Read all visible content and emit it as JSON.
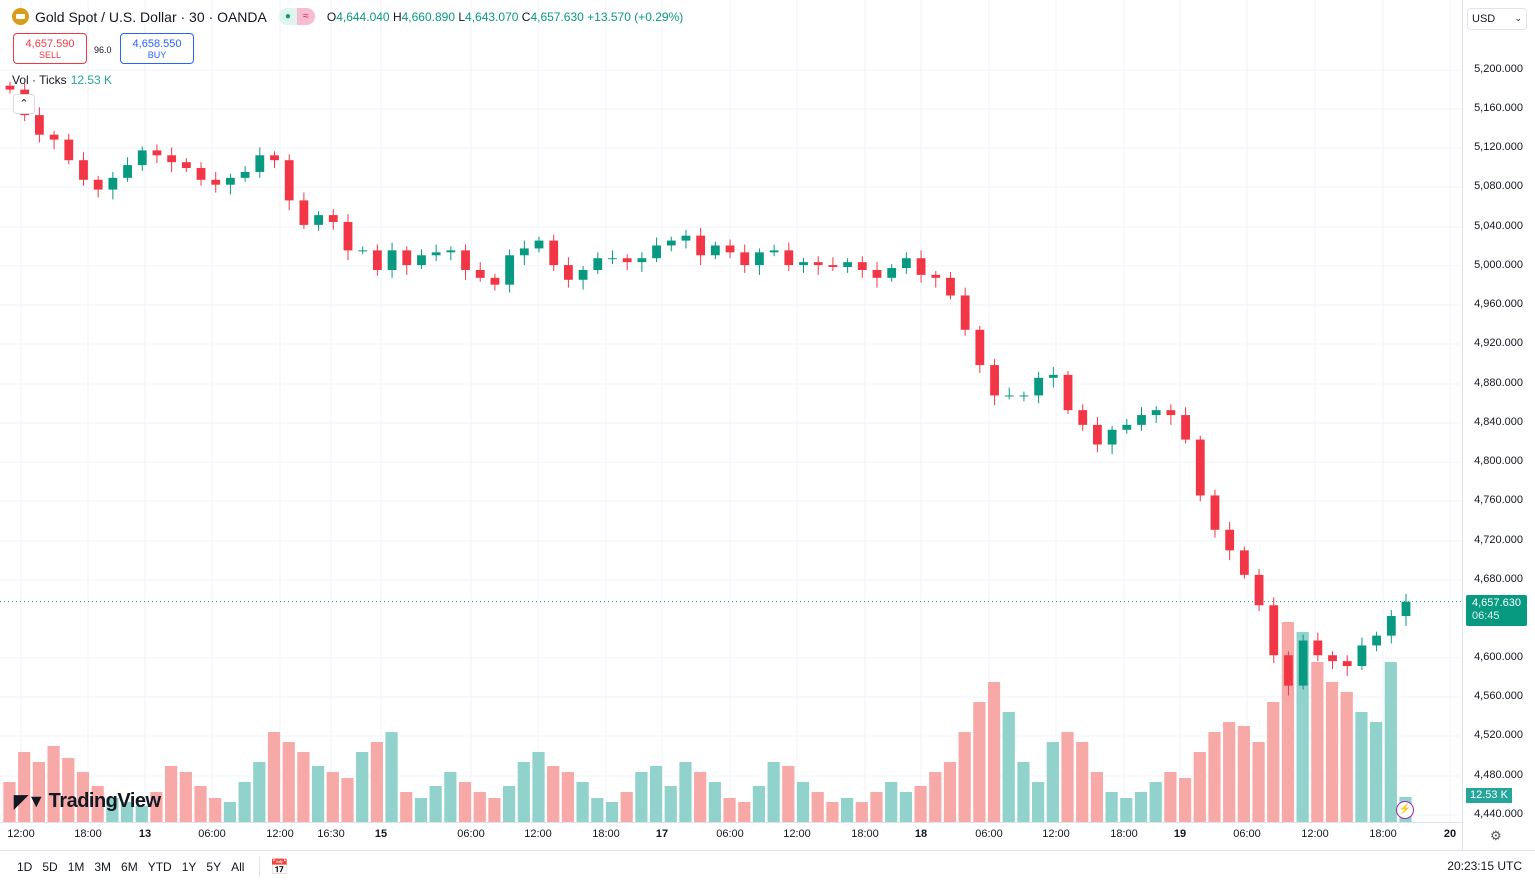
{
  "header": {
    "symbol": "Gold Spot / U.S. Dollar · 30 · OANDA",
    "open_label": "O",
    "open": "4,644.040",
    "high_label": "H",
    "high": "4,660.890",
    "low_label": "L",
    "low": "4,643.070",
    "close_label": "C",
    "close": "4,657.630",
    "change": "+13.570 (+0.29%)"
  },
  "trade": {
    "sell_price": "4,657.590",
    "sell_label": "SELL",
    "spread": "96.0",
    "buy_price": "4,658.550",
    "buy_label": "BUY"
  },
  "volume_legend": {
    "label": "Vol · Ticks",
    "value": "12.53 K"
  },
  "currency": "USD",
  "price_axis": [
    "5,200.000",
    "5,160.000",
    "5,120.000",
    "5,080.000",
    "5,040.000",
    "5,000.000",
    "4,960.000",
    "4,920.000",
    "4,880.000",
    "4,840.000",
    "4,800.000",
    "4,760.000",
    "4,720.000",
    "4,680.000",
    "4,600.000",
    "4,560.000",
    "4,520.000",
    "4,480.000",
    "4,440.000"
  ],
  "last_price": {
    "value": "4,657.630",
    "countdown": "06:45"
  },
  "last_volume": "12.53 K",
  "time_axis": [
    "12:00",
    "18:00",
    "13",
    "06:00",
    "12:00",
    "16:30",
    "15",
    "06:00",
    "12:00",
    "18:00",
    "17",
    "06:00",
    "12:00",
    "18:00",
    "18",
    "06:00",
    "12:00",
    "18:00",
    "19",
    "06:00",
    "12:00",
    "18:00",
    "20"
  ],
  "ranges": [
    "1D",
    "5D",
    "1M",
    "3M",
    "6M",
    "YTD",
    "1Y",
    "5Y",
    "All"
  ],
  "clock": "20:23:15 UTC",
  "logo": "TradingView",
  "colors": {
    "up": "#089981",
    "down": "#f23645",
    "vol_up": "#92d2cc",
    "vol_down": "#f7a9a7",
    "grid": "#f0f3fa"
  },
  "chart_data": {
    "type": "candlestick",
    "ylim": [
      4440,
      5200
    ],
    "closes": [
      5180,
      5154,
      5134,
      5129,
      5108,
      5088,
      5078,
      5090,
      5103,
      5118,
      5113,
      5106,
      5100,
      5088,
      5083,
      5090,
      5096,
      5113,
      5108,
      5067,
      5042,
      5052,
      5045,
      5016,
      5016,
      4996,
      5016,
      5001,
      5011,
      5014,
      5016,
      4996,
      4988,
      4981,
      5011,
      5018,
      5026,
      5001,
      4986,
      4996,
      5008,
      5008,
      5004,
      5008,
      5021,
      5026,
      5031,
      5011,
      5021,
      5014,
      5001,
      5014,
      5016,
      5001,
      5004,
      5001,
      4999,
      5004,
      4996,
      4988,
      4998,
      5008,
      4991,
      4988,
      4970,
      4935,
      4899,
      4868,
      4868,
      4868,
      4886,
      4889,
      4853,
      4838,
      4818,
      4833,
      4838,
      4848,
      4853,
      4848,
      4823,
      4766,
      4731,
      4710,
      4685,
      4654,
      4603,
      4572,
      4618,
      4603,
      4597,
      4592,
      4613,
      4623,
      4643,
      4657.63
    ],
    "volumes_k": [
      20,
      35,
      30,
      38,
      32,
      25,
      18,
      12,
      10,
      8,
      15,
      28,
      25,
      18,
      12,
      10,
      20,
      30,
      45,
      40,
      35,
      28,
      25,
      22,
      35,
      40,
      45,
      15,
      12,
      18,
      25,
      20,
      15,
      12,
      18,
      30,
      35,
      28,
      25,
      20,
      12,
      10,
      15,
      25,
      28,
      18,
      30,
      25,
      20,
      12,
      10,
      18,
      30,
      28,
      20,
      15,
      10,
      12,
      10,
      15,
      20,
      15,
      18,
      25,
      30,
      45,
      60,
      70,
      55,
      30,
      20,
      40,
      45,
      40,
      25,
      15,
      12,
      15,
      20,
      25,
      22,
      35,
      45,
      50,
      48,
      40,
      60,
      100,
      95,
      80,
      70,
      65,
      55,
      50,
      80,
      12.53
    ]
  }
}
